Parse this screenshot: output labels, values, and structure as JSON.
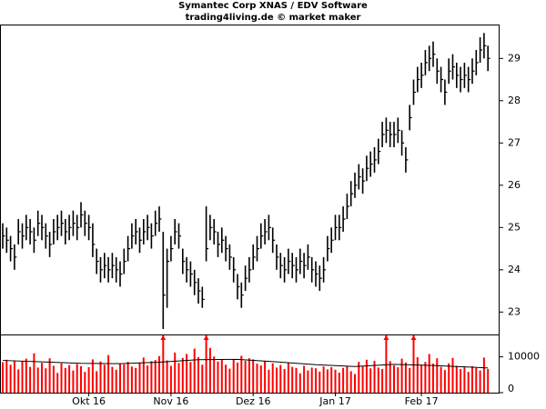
{
  "chart_data": [
    {
      "type": "ohlc",
      "title": "Symantec Corp XNAS / EDV Software",
      "subtitle": "trading4living.de © market maker",
      "categories": [
        null,
        null,
        null,
        null,
        null,
        null,
        null,
        null,
        null,
        null,
        null,
        null,
        null,
        null,
        null,
        null,
        null,
        null,
        null,
        null,
        null,
        null,
        "Okt 16",
        null,
        null,
        null,
        null,
        null,
        null,
        null,
        null,
        null,
        null,
        null,
        null,
        null,
        null,
        null,
        null,
        null,
        null,
        null,
        null,
        "Nov 16",
        null,
        null,
        null,
        null,
        null,
        null,
        null,
        null,
        null,
        null,
        null,
        null,
        null,
        null,
        null,
        null,
        null,
        null,
        null,
        null,
        "Dez 16",
        null,
        null,
        null,
        null,
        null,
        null,
        null,
        null,
        null,
        null,
        null,
        null,
        null,
        null,
        null,
        null,
        null,
        null,
        null,
        null,
        "Jan 17",
        null,
        null,
        null,
        null,
        null,
        null,
        null,
        null,
        null,
        null,
        null,
        null,
        null,
        null,
        null,
        null,
        null,
        null,
        null,
        null,
        null,
        "Feb 17",
        null,
        null,
        null,
        null,
        null,
        null,
        null,
        null,
        null,
        null,
        null,
        null,
        null,
        null,
        null,
        null,
        null
      ],
      "high": [
        25.1,
        25.0,
        24.8,
        24.6,
        25.2,
        25.1,
        25.3,
        25.2,
        25.0,
        25.4,
        25.3,
        25.1,
        24.9,
        25.2,
        25.3,
        25.4,
        25.2,
        25.3,
        25.4,
        25.3,
        25.6,
        25.4,
        25.3,
        25.1,
        24.5,
        24.3,
        24.4,
        24.3,
        24.4,
        24.3,
        24.2,
        24.5,
        24.8,
        25.1,
        25.2,
        25.0,
        25.2,
        25.3,
        25.1,
        25.4,
        25.5,
        24.9,
        24.5,
        24.8,
        25.2,
        25.1,
        24.5,
        24.3,
        24.2,
        24.0,
        23.8,
        23.6,
        25.5,
        25.3,
        25.2,
        24.9,
        25.0,
        24.8,
        24.6,
        24.3,
        23.9,
        23.7,
        24.1,
        24.3,
        24.6,
        24.8,
        25.1,
        25.2,
        25.3,
        25.0,
        24.6,
        24.4,
        24.3,
        24.5,
        24.4,
        24.3,
        24.5,
        24.4,
        24.6,
        24.3,
        24.2,
        24.1,
        24.3,
        24.8,
        25.0,
        25.3,
        25.3,
        25.5,
        25.8,
        26.1,
        26.3,
        26.5,
        26.4,
        26.7,
        26.8,
        26.9,
        27.1,
        27.5,
        27.6,
        27.5,
        27.5,
        27.6,
        27.3,
        26.9,
        27.9,
        28.5,
        28.8,
        28.9,
        29.2,
        29.3,
        29.4,
        29.0,
        28.8,
        28.5,
        29.0,
        29.1,
        28.9,
        28.8,
        28.9,
        28.8,
        29.0,
        29.2,
        29.5,
        29.6,
        29.3
      ],
      "low": [
        24.5,
        24.4,
        24.2,
        24.0,
        24.6,
        24.5,
        24.7,
        24.6,
        24.4,
        24.8,
        24.7,
        24.5,
        24.3,
        24.6,
        24.7,
        24.8,
        24.6,
        24.7,
        24.8,
        24.7,
        25.0,
        24.8,
        24.7,
        24.3,
        23.9,
        23.7,
        23.8,
        23.7,
        23.8,
        23.7,
        23.6,
        23.9,
        24.2,
        24.5,
        24.6,
        24.4,
        24.6,
        24.7,
        24.5,
        24.8,
        24.9,
        22.6,
        23.1,
        24.2,
        24.6,
        24.5,
        23.9,
        23.7,
        23.6,
        23.4,
        23.2,
        23.1,
        24.2,
        24.7,
        24.6,
        24.3,
        24.4,
        24.2,
        24.0,
        23.7,
        23.3,
        23.1,
        23.5,
        23.7,
        24.0,
        24.2,
        24.5,
        24.6,
        24.7,
        24.4,
        24.0,
        23.8,
        23.7,
        23.9,
        23.8,
        23.7,
        23.9,
        23.8,
        24.0,
        23.7,
        23.6,
        23.5,
        23.7,
        24.2,
        24.4,
        24.7,
        24.7,
        24.9,
        25.2,
        25.5,
        25.7,
        25.9,
        25.8,
        26.1,
        26.2,
        26.3,
        26.5,
        26.9,
        27.0,
        26.9,
        26.9,
        27.0,
        26.7,
        26.3,
        27.3,
        27.9,
        28.2,
        28.3,
        28.6,
        28.7,
        28.8,
        28.4,
        28.2,
        27.9,
        28.4,
        28.5,
        28.3,
        28.2,
        28.3,
        28.2,
        28.4,
        28.6,
        28.9,
        29.0,
        28.7
      ],
      "close": [
        24.8,
        24.7,
        24.5,
        24.3,
        24.9,
        24.8,
        25.0,
        24.9,
        24.7,
        25.1,
        25.0,
        24.8,
        24.6,
        24.9,
        25.0,
        25.1,
        24.9,
        25.0,
        25.1,
        25.0,
        25.3,
        25.1,
        25.0,
        24.6,
        24.2,
        24.0,
        24.1,
        24.0,
        24.1,
        24.0,
        23.9,
        24.2,
        24.5,
        24.8,
        24.9,
        24.7,
        24.9,
        25.0,
        24.8,
        25.1,
        25.2,
        23.4,
        24.2,
        24.5,
        24.9,
        24.8,
        24.2,
        24.0,
        23.9,
        23.7,
        23.5,
        23.3,
        24.5,
        25.0,
        24.9,
        24.6,
        24.7,
        24.5,
        24.3,
        24.0,
        23.6,
        23.4,
        23.8,
        24.0,
        24.3,
        24.5,
        24.8,
        24.9,
        25.0,
        24.7,
        24.3,
        24.1,
        24.0,
        24.2,
        24.1,
        24.0,
        24.2,
        24.1,
        24.3,
        24.0,
        23.9,
        23.8,
        24.0,
        24.5,
        24.7,
        25.0,
        25.0,
        25.2,
        25.5,
        25.8,
        26.0,
        26.2,
        26.1,
        26.4,
        26.5,
        26.6,
        26.8,
        27.2,
        27.3,
        27.2,
        27.2,
        27.3,
        27.0,
        26.6,
        27.6,
        28.2,
        28.5,
        28.6,
        28.9,
        29.0,
        29.1,
        28.7,
        28.5,
        28.2,
        28.7,
        28.8,
        28.6,
        28.5,
        28.6,
        28.5,
        28.7,
        28.9,
        29.2,
        29.3,
        29.0
      ],
      "color": "#000000",
      "ylim": [
        22.47,
        29.78
      ],
      "yticks": [
        23,
        24,
        25,
        26,
        27,
        28,
        29
      ]
    },
    {
      "type": "bar",
      "values": [
        8500,
        9200,
        7800,
        9000,
        6500,
        8800,
        9500,
        7200,
        11000,
        7000,
        8300,
        6800,
        9600,
        7500,
        5500,
        8200,
        6900,
        7700,
        6200,
        8000,
        7400,
        5800,
        7100,
        9300,
        6000,
        8700,
        7800,
        10500,
        7200,
        6400,
        8100,
        7900,
        8600,
        7300,
        6900,
        8400,
        9800,
        7600,
        8800,
        9100,
        10200,
        16000,
        9000,
        7500,
        11200,
        8300,
        9700,
        10800,
        8600,
        12300,
        9900,
        7800,
        16000,
        12500,
        10100,
        8700,
        9300,
        7800,
        6700,
        9200,
        8400,
        10300,
        8900,
        9600,
        9300,
        8100,
        7600,
        8800,
        6400,
        8200,
        7000,
        7700,
        6600,
        8300,
        7200,
        6900,
        5400,
        7500,
        6200,
        7000,
        6800,
        5900,
        7300,
        6500,
        7100,
        6400,
        5600,
        6900,
        7400,
        6000,
        5200,
        8600,
        7300,
        9200,
        6800,
        8900,
        7000,
        6600,
        16000,
        8800,
        7600,
        7100,
        9500,
        8400,
        6900,
        16000,
        9900,
        7800,
        8600,
        10800,
        8100,
        9600,
        7200,
        6300,
        8200,
        9700,
        7500,
        6600,
        7100,
        5800,
        7400,
        6900,
        6200,
        9800,
        6600
      ],
      "color": "#ff0000",
      "ylim": [
        0,
        16000
      ],
      "yticks": [
        0,
        10000
      ],
      "series": [
        {
          "x": [
            0,
            10,
            20,
            30,
            40,
            50,
            60,
            70,
            80,
            90,
            100,
            110,
            120,
            124
          ],
          "values": [
            9000,
            8600,
            8200,
            8100,
            8500,
            9200,
            9300,
            8600,
            7800,
            7300,
            7900,
            7600,
            7100,
            6900
          ],
          "color": "#000000"
        }
      ]
    }
  ]
}
